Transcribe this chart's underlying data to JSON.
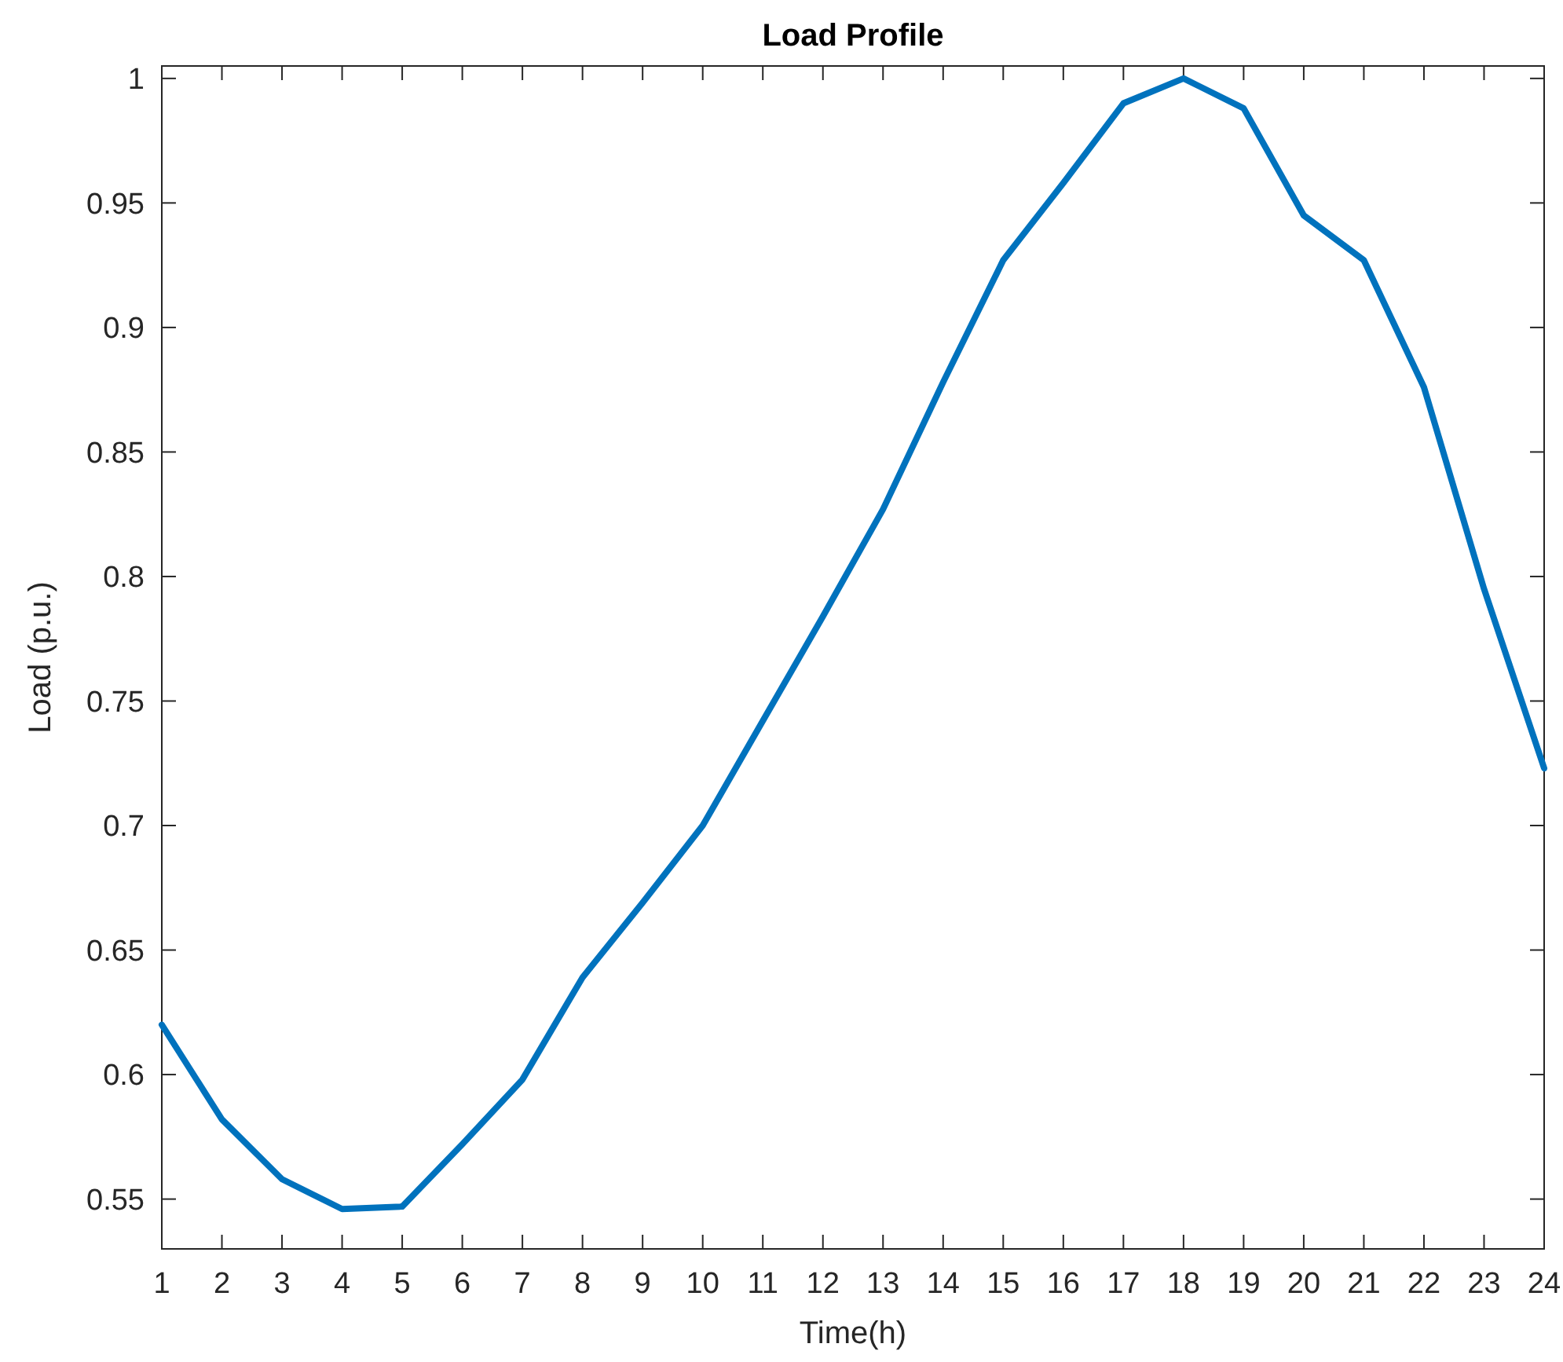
{
  "chart_data": {
    "type": "line",
    "title": "Load Profile",
    "xlabel": "Time(h)",
    "ylabel": "Load (p.u.)",
    "x": [
      1,
      2,
      3,
      4,
      5,
      6,
      7,
      8,
      9,
      10,
      11,
      12,
      13,
      14,
      15,
      16,
      17,
      18,
      19,
      20,
      21,
      22,
      23,
      24
    ],
    "series": [
      {
        "color": "#0072bd",
        "values": [
          0.62,
          0.582,
          0.558,
          0.546,
          0.547,
          0.572,
          0.598,
          0.639,
          0.669,
          0.7,
          0.742,
          0.784,
          0.827,
          0.878,
          0.927,
          0.958,
          0.99,
          1.0,
          0.988,
          0.945,
          0.927,
          0.876,
          0.795,
          0.723
        ]
      }
    ],
    "xlim": [
      1,
      24
    ],
    "xticks": [
      1,
      2,
      3,
      4,
      5,
      6,
      7,
      8,
      9,
      10,
      11,
      12,
      13,
      14,
      15,
      16,
      17,
      18,
      19,
      20,
      21,
      22,
      23,
      24
    ],
    "ylim": [
      0.53,
      1.005
    ],
    "yticks": [
      0.55,
      0.6,
      0.65,
      0.7,
      0.75,
      0.8,
      0.85,
      0.9,
      0.95,
      1
    ],
    "grid": false,
    "marker": "none",
    "line_style": "solid"
  }
}
